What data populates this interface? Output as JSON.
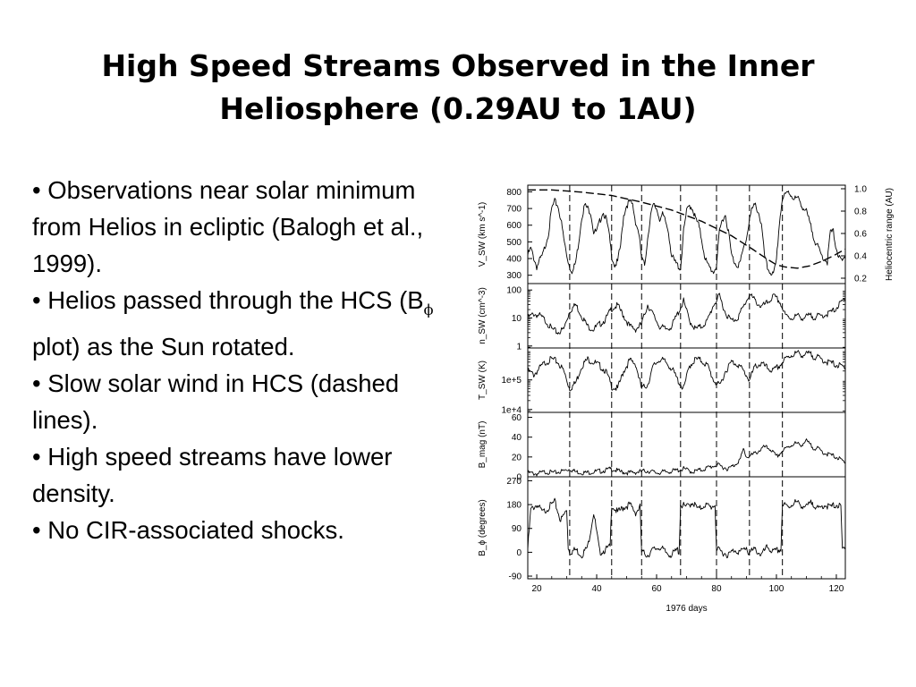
{
  "slide": {
    "title_line1": "High Speed Streams Observed in the Inner",
    "title_line2": "Heliosphere (0.29AU to 1AU)"
  },
  "bullets": [
    {
      "text": "• Observations near solar minimum from Helios in ecliptic (Balogh et al., 1999)."
    },
    {
      "before": "• Helios passed through the HCS (B",
      "sub": "ϕ",
      "after": " plot) as the Sun rotated."
    },
    {
      "text": "• Slow solar wind in HCS (dashed lines)."
    },
    {
      "text": "• High speed streams have lower density."
    },
    {
      "text": "• No CIR-associated shocks."
    }
  ],
  "chart_data": {
    "type": "line",
    "xlabel": "1976 days",
    "x_ticks": [
      "20",
      "40",
      "60",
      "80",
      "100",
      "120"
    ],
    "xlim": [
      17,
      123
    ],
    "hcs_crossing_days": [
      31,
      45,
      55,
      68,
      80,
      91,
      102,
      123
    ],
    "panels": [
      {
        "name": "speed",
        "ylabel": "V_SW (km s^-1)",
        "ylim": [
          250,
          840
        ],
        "scale": "linear",
        "y_ticks": [
          "800",
          "700",
          "600",
          "500",
          "400",
          "300"
        ],
        "tick_values": [
          800,
          700,
          600,
          500,
          400,
          300
        ],
        "right_axis": {
          "label": "Heliocentric range (AU)",
          "ticks": [
            "1.0",
            "0.8",
            "0.6",
            "0.4",
            "0.2"
          ],
          "tick_values": [
            1.0,
            0.8,
            0.6,
            0.4,
            0.2
          ],
          "ylim": [
            0.2,
            1.0
          ]
        },
        "series": [
          {
            "style": "solid",
            "x": [
              17,
              18,
              20,
              21,
              22,
              24,
              25,
              26,
              27,
              28,
              29,
              30,
              31,
              32,
              33,
              34,
              35,
              36,
              37,
              38,
              39,
              40,
              41,
              42,
              43,
              44,
              45,
              46,
              47,
              48,
              49,
              50,
              51,
              52,
              53,
              54,
              55,
              56,
              57,
              58,
              59,
              60,
              61,
              62,
              63,
              64,
              65,
              66,
              67,
              68,
              69,
              70,
              71,
              72,
              73,
              74,
              75,
              76,
              77,
              78,
              79,
              80,
              81,
              82,
              83,
              84,
              85,
              86,
              87,
              88,
              89,
              90,
              91,
              92,
              93,
              94,
              95,
              96,
              97,
              98,
              99,
              100,
              101,
              102,
              103,
              104,
              105,
              106,
              107,
              108,
              109,
              110,
              111,
              112,
              113,
              114,
              115,
              116,
              117,
              118,
              119,
              120,
              121,
              122,
              123
            ],
            "y": [
              420,
              460,
              350,
              390,
              420,
              560,
              700,
              740,
              720,
              640,
              520,
              420,
              350,
              320,
              380,
              500,
              650,
              720,
              700,
              680,
              560,
              560,
              620,
              680,
              650,
              560,
              420,
              360,
              380,
              480,
              660,
              720,
              740,
              720,
              620,
              560,
              400,
              360,
              520,
              660,
              720,
              700,
              640,
              660,
              620,
              560,
              420,
              380,
              360,
              340,
              560,
              680,
              720,
              700,
              640,
              600,
              520,
              420,
              360,
              340,
              320,
              360,
              560,
              640,
              660,
              560,
              420,
              380,
              360,
              380,
              460,
              520,
              640,
              700,
              720,
              680,
              600,
              420,
              340,
              320,
              300,
              380,
              620,
              760,
              780,
              800,
              780,
              760,
              760,
              740,
              700,
              680,
              620,
              560,
              500,
              460,
              420,
              400,
              380,
              560,
              560,
              460,
              400,
              380,
              420
            ]
          },
          {
            "style": "dashed",
            "name": "range",
            "x": [
              17,
              25,
              35,
              45,
              55,
              65,
              75,
              85,
              92,
              97,
              100,
              103,
              107,
              111,
              115,
              119,
              123
            ],
            "y": [
              0.99,
              0.99,
              0.97,
              0.94,
              0.88,
              0.81,
              0.71,
              0.58,
              0.46,
              0.37,
              0.32,
              0.3,
              0.29,
              0.31,
              0.35,
              0.4,
              0.46
            ]
          }
        ]
      },
      {
        "name": "density",
        "ylabel": "n_SW (cm^-3)",
        "ylim": [
          0.85,
          170
        ],
        "scale": "log",
        "y_ticks": [
          "100",
          "10",
          "1"
        ],
        "tick_values": [
          100,
          10,
          1
        ],
        "series": [
          {
            "style": "solid",
            "x": [
              17,
              19,
              21,
              23,
              25,
              27,
              29,
              31,
              33,
              35,
              37,
              39,
              41,
              43,
              45,
              47,
              49,
              51,
              53,
              55,
              57,
              59,
              61,
              63,
              65,
              67,
              69,
              71,
              73,
              75,
              77,
              79,
              81,
              83,
              85,
              87,
              89,
              91,
              93,
              95,
              97,
              99,
              101,
              103,
              105,
              107,
              109,
              111,
              113,
              115,
              117,
              119,
              121,
              123
            ],
            "y": [
              10,
              14,
              12,
              8,
              4,
              3,
              4,
              18,
              30,
              12,
              5,
              4,
              6,
              9,
              22,
              28,
              12,
              5,
              4,
              6,
              30,
              12,
              5,
              4,
              5,
              14,
              40,
              8,
              4,
              5,
              8,
              30,
              60,
              15,
              8,
              10,
              25,
              70,
              40,
              25,
              35,
              60,
              40,
              12,
              10,
              12,
              10,
              12,
              11,
              12,
              14,
              18,
              30,
              50
            ]
          }
        ]
      },
      {
        "name": "temperature",
        "ylabel": "T_SW (K)",
        "ylim": [
          8000,
          1200000
        ],
        "scale": "log",
        "y_ticks": [
          "1e+5",
          "1e+4"
        ],
        "tick_values": [
          100000,
          10000
        ],
        "series": [
          {
            "style": "solid",
            "x": [
              17,
              19,
              21,
              23,
              25,
              27,
              29,
              31,
              33,
              35,
              37,
              39,
              41,
              43,
              45,
              47,
              49,
              51,
              53,
              55,
              57,
              59,
              61,
              63,
              65,
              67,
              69,
              71,
              73,
              75,
              77,
              79,
              81,
              83,
              85,
              87,
              89,
              91,
              93,
              95,
              97,
              99,
              101,
              103,
              105,
              107,
              109,
              111,
              113,
              115,
              117,
              119,
              121,
              123
            ],
            "y": [
              200000,
              150000,
              250000,
              400000,
              500000,
              400000,
              200000,
              50000,
              80000,
              300000,
              500000,
              400000,
              300000,
              200000,
              60000,
              50000,
              200000,
              450000,
              350000,
              50000,
              70000,
              300000,
              500000,
              400000,
              250000,
              100000,
              50000,
              300000,
              500000,
              450000,
              300000,
              100000,
              60000,
              200000,
              400000,
              350000,
              200000,
              100000,
              300000,
              350000,
              250000,
              200000,
              300000,
              500000,
              700000,
              800000,
              700000,
              750000,
              600000,
              500000,
              400000,
              350000,
              300000,
              250000
            ]
          }
        ]
      },
      {
        "name": "magnetic-field-magnitude",
        "ylabel": "B_mag (nT)",
        "ylim": [
          0,
          65
        ],
        "scale": "linear",
        "y_ticks": [
          "60",
          "40",
          "20",
          "0"
        ],
        "tick_values": [
          60,
          40,
          20,
          0
        ],
        "series": [
          {
            "style": "solid",
            "x": [
              17,
              20,
              23,
              26,
              29,
              31,
              33,
              36,
              39,
              42,
              45,
              48,
              51,
              54,
              57,
              60,
              63,
              66,
              69,
              72,
              75,
              78,
              80,
              82,
              84,
              86,
              88,
              89,
              90,
              92,
              94,
              96,
              98,
              100,
              102,
              104,
              106,
              108,
              110,
              112,
              114,
              116,
              118,
              120,
              123
            ],
            "y": [
              4,
              3,
              5,
              4,
              6,
              8,
              5,
              4,
              5,
              6,
              8,
              5,
              4,
              5,
              6,
              4,
              5,
              6,
              8,
              5,
              7,
              10,
              12,
              10,
              8,
              12,
              18,
              28,
              20,
              22,
              26,
              30,
              28,
              20,
              26,
              30,
              34,
              32,
              36,
              30,
              28,
              24,
              22,
              20,
              14
            ]
          }
        ]
      },
      {
        "name": "magnetic-field-angle",
        "ylabel": "B_ϕ (degrees)",
        "ylim": [
          -100,
          285
        ],
        "scale": "linear",
        "y_ticks": [
          "270",
          "180",
          "90",
          "0",
          "-90"
        ],
        "tick_values": [
          270,
          180,
          90,
          0,
          -90
        ],
        "series": [
          {
            "style": "solid",
            "x": [
              17,
              18,
              20,
              22,
              24,
              26,
              28,
              30,
              30.5,
              31,
              33,
              35,
              37,
              39,
              41,
              43,
              44.5,
              45,
              47,
              49,
              51,
              53,
              54.5,
              55,
              57,
              59,
              61,
              63,
              65,
              67,
              67.5,
              68,
              70,
              72,
              74,
              76,
              78,
              79.5,
              80,
              82,
              84,
              86,
              88,
              90,
              90.5,
              91,
              93,
              95,
              97,
              99,
              101,
              101.5,
              102,
              104,
              106,
              108,
              110,
              112,
              114,
              116,
              118,
              120,
              121.5,
              122,
              123
            ],
            "y": [
              10,
              160,
              180,
              150,
              170,
              190,
              120,
              160,
              20,
              0,
              10,
              -10,
              20,
              150,
              0,
              10,
              20,
              180,
              150,
              170,
              180,
              150,
              170,
              0,
              -10,
              10,
              20,
              0,
              -10,
              10,
              0,
              180,
              170,
              190,
              160,
              180,
              170,
              180,
              10,
              0,
              -10,
              10,
              0,
              20,
              0,
              0,
              10,
              -10,
              20,
              0,
              10,
              10,
              180,
              170,
              190,
              180,
              170,
              190,
              160,
              180,
              170,
              180,
              170,
              10,
              20
            ]
          }
        ]
      }
    ]
  }
}
